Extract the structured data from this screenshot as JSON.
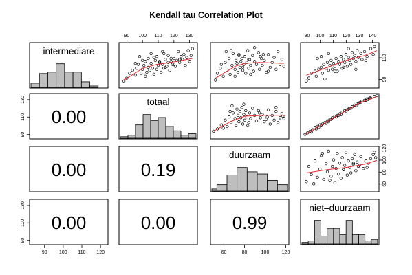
{
  "chart_data": {
    "type": "scatter-matrix",
    "title": "Kendall tau Correlation Plot",
    "variables": [
      "intermediare",
      "totaal",
      "duurzaam",
      "niet–duurzaam"
    ],
    "correlations": [
      {
        "row": 1,
        "col": 0,
        "label": "0.00"
      },
      {
        "row": 2,
        "col": 0,
        "label": "0.00"
      },
      {
        "row": 2,
        "col": 1,
        "label": "0.19"
      },
      {
        "row": 3,
        "col": 0,
        "label": "0.00"
      },
      {
        "row": 3,
        "col": 1,
        "label": "0.00"
      },
      {
        "row": 3,
        "col": 2,
        "label": "0.99"
      }
    ],
    "axes": {
      "top": [
        {
          "col": 1,
          "range": [
            85,
            135
          ],
          "ticks": [
            90,
            100,
            110,
            120,
            130
          ]
        },
        {
          "col": 3,
          "range": [
            85,
            145
          ],
          "ticks": [
            90,
            100,
            110,
            120,
            130,
            140
          ]
        }
      ],
      "bottom": [
        {
          "col": 0,
          "range": [
            82,
            124
          ],
          "ticks": [
            90,
            100,
            110,
            120
          ]
        },
        {
          "col": 2,
          "range": [
            47,
            123
          ],
          "ticks": [
            60,
            80,
            100,
            120
          ]
        }
      ],
      "left": [
        {
          "row": 1,
          "range": [
            85,
            137
          ],
          "ticks": [
            90,
            110,
            130
          ]
        },
        {
          "row": 3,
          "range": [
            85,
            137
          ],
          "ticks": [
            90,
            110,
            130
          ]
        }
      ],
      "right": [
        {
          "row": 0,
          "range": [
            82,
            124
          ],
          "ticks": [
            90,
            110
          ]
        },
        {
          "row": 2,
          "range": [
            47,
            123
          ],
          "ticks": [
            60,
            80,
            100,
            120
          ]
        }
      ]
    },
    "histograms": [
      {
        "var": "intermediare",
        "breaks": [
          80,
          85,
          90,
          95,
          100,
          105,
          110,
          115,
          120,
          125
        ],
        "counts": [
          3,
          10,
          11,
          17,
          11,
          11,
          4,
          1,
          0
        ]
      },
      {
        "var": "totaal",
        "breaks": [
          85,
          90,
          95,
          100,
          105,
          110,
          115,
          120,
          125,
          130,
          135
        ],
        "counts": [
          1,
          2,
          9,
          16,
          12,
          14,
          8,
          5,
          2,
          3
        ]
      },
      {
        "var": "duurzaam",
        "breaks": [
          45,
          50,
          60,
          70,
          80,
          90,
          100,
          110,
          120
        ],
        "counts": [
          2,
          6,
          15,
          22,
          18,
          16,
          10,
          6
        ]
      },
      {
        "var": "niet–duurzaam",
        "breaks": [
          85,
          90,
          95,
          100,
          105,
          110,
          115,
          120,
          125,
          130,
          135,
          140,
          145
        ],
        "counts": [
          1,
          2,
          15,
          5,
          10,
          10,
          6,
          15,
          6,
          6,
          2,
          3
        ]
      }
    ],
    "scatter": [
      {
        "row": 0,
        "col": 1,
        "x": [
          87,
          89,
          91,
          93,
          95,
          96,
          97,
          99,
          100,
          101,
          102,
          103,
          104,
          104,
          105,
          106,
          107,
          108,
          109,
          110,
          110,
          111,
          112,
          113,
          114,
          115,
          115,
          116,
          117,
          118,
          118,
          119,
          120,
          121,
          122,
          123,
          124,
          125,
          126,
          127,
          128,
          129,
          130,
          131,
          132,
          133,
          134,
          135,
          95,
          98,
          100,
          102,
          106,
          108,
          112,
          114,
          116,
          120,
          122,
          126
        ],
        "y": [
          87,
          90,
          95,
          98,
          93,
          100,
          104,
          95,
          99,
          103,
          107,
          96,
          101,
          110,
          98,
          105,
          100,
          94,
          108,
          99,
          112,
          103,
          106,
          96,
          104,
          115,
          100,
          109,
          102,
          106,
          113,
          98,
          107,
          104,
          110,
          102,
          108,
          117,
          106,
          112,
          109,
          114,
          103,
          111,
          118,
          107,
          113,
          120,
          105,
          112,
          108,
          92,
          115,
          111,
          107,
          117,
          101,
          110,
          104,
          109
        ],
        "fit": [
          [
            87,
            88
          ],
          [
            100,
            100
          ],
          [
            110,
            104
          ],
          [
            120,
            106
          ],
          [
            135,
            110
          ]
        ]
      },
      {
        "row": 0,
        "col": 2,
        "x": [
          50,
          52,
          55,
          58,
          60,
          62,
          64,
          65,
          67,
          68,
          70,
          71,
          72,
          73,
          74,
          75,
          76,
          77,
          78,
          79,
          80,
          81,
          82,
          83,
          84,
          85,
          86,
          88,
          89,
          90,
          92,
          94,
          95,
          97,
          98,
          100,
          102,
          104,
          106,
          108,
          110,
          112,
          114,
          116,
          118,
          120,
          66,
          70,
          74,
          78,
          86,
          90,
          96,
          104,
          56,
          61,
          84,
          99
        ],
        "y": [
          88,
          95,
          100,
          92,
          106,
          98,
          110,
          94,
          103,
          115,
          99,
          108,
          105,
          96,
          113,
          101,
          107,
          110,
          98,
          104,
          112,
          95,
          106,
          118,
          100,
          109,
          103,
          113,
          97,
          107,
          104,
          116,
          99,
          110,
          103,
          108,
          96,
          114,
          101,
          106,
          111,
          99,
          117,
          104,
          109,
          102,
          118,
          92,
          114,
          101,
          94,
          121,
          112,
          97,
          104,
          117,
          109,
          114
        ],
        "fit": [
          [
            50,
            90
          ],
          [
            70,
            102
          ],
          [
            80,
            105
          ],
          [
            95,
            106
          ],
          [
            120,
            105
          ]
        ]
      },
      {
        "row": 0,
        "col": 3,
        "x": [
          88,
          90,
          92,
          95,
          96,
          98,
          100,
          101,
          102,
          104,
          105,
          106,
          107,
          108,
          109,
          110,
          111,
          112,
          113,
          114,
          115,
          116,
          117,
          118,
          119,
          120,
          121,
          122,
          123,
          124,
          125,
          126,
          127,
          128,
          129,
          130,
          132,
          133,
          135,
          137,
          140,
          142,
          97,
          100,
          103,
          106,
          111,
          118,
          122,
          128,
          136,
          143
        ],
        "y": [
          87,
          90,
          95,
          97,
          92,
          99,
          101,
          95,
          104,
          100,
          106,
          98,
          103,
          108,
          99,
          105,
          102,
          110,
          97,
          107,
          104,
          112,
          100,
          109,
          106,
          114,
          102,
          111,
          108,
          104,
          116,
          110,
          113,
          107,
          118,
          111,
          115,
          109,
          117,
          112,
          120,
          114,
          110,
          112,
          89,
          115,
          97,
          101,
          120,
          99,
          108,
          122
        ],
        "fit": [
          [
            88,
            93
          ],
          [
            105,
            101
          ],
          [
            120,
            108
          ],
          [
            135,
            113
          ],
          [
            145,
            118
          ]
        ]
      },
      {
        "row": 1,
        "col": 2,
        "x": [
          48,
          52,
          56,
          60,
          62,
          64,
          66,
          68,
          70,
          71,
          72,
          73,
          74,
          75,
          76,
          77,
          78,
          79,
          80,
          81,
          82,
          84,
          85,
          86,
          88,
          90,
          92,
          94,
          96,
          98,
          100,
          102,
          104,
          106,
          108,
          110,
          112,
          114,
          116,
          118,
          120,
          58,
          67,
          79,
          83,
          95,
          103,
          112,
          119,
          65
        ],
        "y": [
          92,
          95,
          100,
          106,
          98,
          110,
          103,
          115,
          108,
          99,
          120,
          112,
          104,
          117,
          109,
          122,
          101,
          113,
          106,
          118,
          110,
          103,
          115,
          108,
          121,
          112,
          105,
          118,
          109,
          113,
          104,
          107,
          119,
          101,
          112,
          106,
          117,
          103,
          109,
          114,
          108,
          96,
          124,
          126,
          99,
          115,
          110,
          122,
          111,
          117
        ],
        "fit": [
          [
            48,
            92
          ],
          [
            65,
            104
          ],
          [
            80,
            111
          ],
          [
            100,
            112
          ],
          [
            122,
            112
          ]
        ]
      },
      {
        "row": 1,
        "col": 3,
        "x": [
          87,
          89,
          91,
          93,
          95,
          97,
          99,
          101,
          103,
          105,
          107,
          109,
          111,
          113,
          115,
          117,
          119,
          121,
          123,
          125,
          127,
          129,
          131,
          133,
          135,
          137,
          139,
          141,
          143,
          145,
          92,
          96,
          100,
          104,
          108,
          112,
          116,
          120,
          124,
          128,
          132,
          136,
          140,
          98,
          106,
          114,
          122,
          130,
          138
        ],
        "y": [
          88,
          90,
          92,
          94,
          96,
          98,
          100,
          101,
          103,
          105,
          107,
          109,
          111,
          112,
          114,
          116,
          118,
          119,
          121,
          123,
          125,
          127,
          128,
          130,
          131,
          133,
          134,
          135,
          136,
          137,
          91,
          95,
          99,
          102,
          107,
          110,
          113,
          117,
          121,
          124,
          128,
          131,
          134,
          97,
          104,
          112,
          120,
          127,
          132
        ],
        "fit": [
          [
            87,
            88
          ],
          [
            110,
            109
          ],
          [
            130,
            127
          ],
          [
            145,
            136
          ]
        ]
      },
      {
        "row": 2,
        "col": 3,
        "x": [
          88,
          90,
          92,
          95,
          97,
          99,
          100,
          102,
          104,
          105,
          106,
          108,
          109,
          110,
          111,
          112,
          113,
          114,
          115,
          116,
          117,
          118,
          119,
          120,
          121,
          122,
          123,
          124,
          125,
          126,
          127,
          128,
          129,
          130,
          132,
          134,
          136,
          138,
          140,
          142,
          144,
          94,
          101,
          107,
          118,
          126,
          131,
          137,
          143
        ],
        "y": [
          62,
          90,
          75,
          100,
          70,
          85,
          110,
          66,
          95,
          80,
          118,
          72,
          90,
          102,
          60,
          86,
          114,
          76,
          96,
          68,
          106,
          84,
          92,
          116,
          74,
          100,
          88,
          78,
          104,
          94,
          112,
          82,
          98,
          90,
          108,
          86,
          100,
          96,
          104,
          112,
          106,
          58,
          114,
          64,
          84,
          96,
          92,
          88,
          116
        ],
        "fit": [
          [
            88,
            78
          ],
          [
            105,
            84
          ],
          [
            120,
            88
          ],
          [
            135,
            94
          ],
          [
            145,
            101
          ]
        ]
      }
    ]
  }
}
